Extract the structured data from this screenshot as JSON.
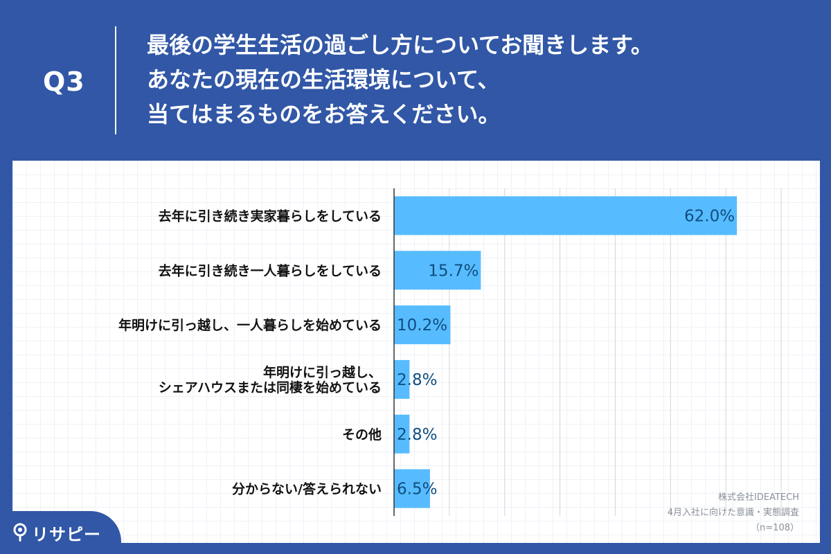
{
  "header": {
    "q_label": "Q3",
    "question_lines": [
      "最後の学生生活の過ごし方についてお聞きします。",
      "あなたの現在の生活環境について、",
      "当てはまるものをお答えください。"
    ]
  },
  "chart_data": {
    "type": "bar",
    "orientation": "horizontal",
    "categories": [
      [
        "去年に引き続き実家暮らしをしている"
      ],
      [
        "去年に引き続き一人暮らしをしている"
      ],
      [
        "年明けに引っ越し、一人暮らしを始めている"
      ],
      [
        "年明けに引っ越し、",
        "シェアハウスまたは同棲を始めている"
      ],
      [
        "その他"
      ],
      [
        "分からない/答えられない"
      ]
    ],
    "values": [
      62.0,
      15.7,
      10.2,
      2.8,
      2.8,
      6.5
    ],
    "value_labels": [
      "62.0%",
      "15.7%",
      "10.2%",
      "2.8%",
      "2.8%",
      "6.5%"
    ],
    "xlim": [
      0,
      70
    ],
    "grid": true,
    "colors": {
      "bar": "#57bcff",
      "value_text": "#0f4d80",
      "grid": "#d4d4d4",
      "axis": "#333333"
    }
  },
  "source": {
    "company": "株式会社IDEATECH",
    "survey": "4月入社に向けた意識・実態調査",
    "sample": "（n=108）"
  },
  "logo": {
    "text": "リサピー",
    "icon": "pin-icon"
  },
  "colors": {
    "background": "#3157a6"
  }
}
